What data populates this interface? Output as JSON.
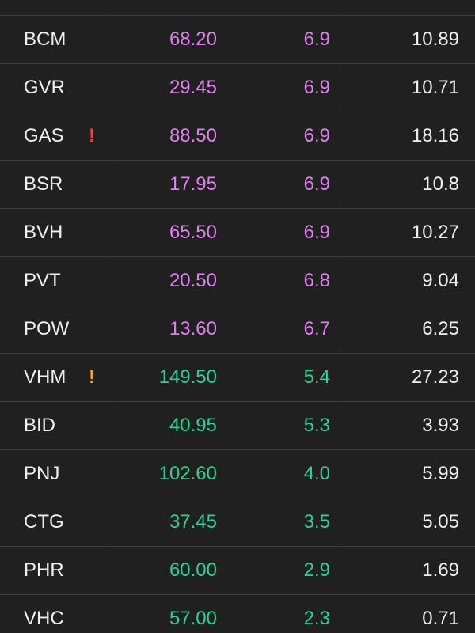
{
  "colors": {
    "ceiling": "#e07ff0",
    "up": "#25d49b",
    "alert_red": "#ff3b3b",
    "alert_orange": "#f5a623"
  },
  "rows": [
    {
      "symbol": "",
      "price": "",
      "change_pct": "",
      "value": "",
      "color": "ceiling",
      "alert": ""
    },
    {
      "symbol": "BCM",
      "price": "68.20",
      "change_pct": "6.9",
      "value": "10.89",
      "color": "ceiling",
      "alert": ""
    },
    {
      "symbol": "GVR",
      "price": "29.45",
      "change_pct": "6.9",
      "value": "10.71",
      "color": "ceiling",
      "alert": ""
    },
    {
      "symbol": "GAS",
      "price": "88.50",
      "change_pct": "6.9",
      "value": "18.16",
      "color": "ceiling",
      "alert": "!",
      "alert_color": "alert-red"
    },
    {
      "symbol": "BSR",
      "price": "17.95",
      "change_pct": "6.9",
      "value": "10.8",
      "color": "ceiling",
      "alert": ""
    },
    {
      "symbol": "BVH",
      "price": "65.50",
      "change_pct": "6.9",
      "value": "10.27",
      "color": "ceiling",
      "alert": ""
    },
    {
      "symbol": "PVT",
      "price": "20.50",
      "change_pct": "6.8",
      "value": "9.04",
      "color": "ceiling",
      "alert": ""
    },
    {
      "symbol": "POW",
      "price": "13.60",
      "change_pct": "6.7",
      "value": "6.25",
      "color": "ceiling",
      "alert": ""
    },
    {
      "symbol": "VHM",
      "price": "149.50",
      "change_pct": "5.4",
      "value": "27.23",
      "color": "up",
      "alert": "!",
      "alert_color": "alert-orange"
    },
    {
      "symbol": "BID",
      "price": "40.95",
      "change_pct": "5.3",
      "value": "3.93",
      "color": "up",
      "alert": ""
    },
    {
      "symbol": "PNJ",
      "price": "102.60",
      "change_pct": "4.0",
      "value": "5.99",
      "color": "up",
      "alert": ""
    },
    {
      "symbol": "CTG",
      "price": "37.45",
      "change_pct": "3.5",
      "value": "5.05",
      "color": "up",
      "alert": ""
    },
    {
      "symbol": "PHR",
      "price": "60.00",
      "change_pct": "2.9",
      "value": "1.69",
      "color": "up",
      "alert": ""
    },
    {
      "symbol": "VHC",
      "price": "57.00",
      "change_pct": "2.3",
      "value": "0.71",
      "color": "up",
      "alert": ""
    }
  ]
}
